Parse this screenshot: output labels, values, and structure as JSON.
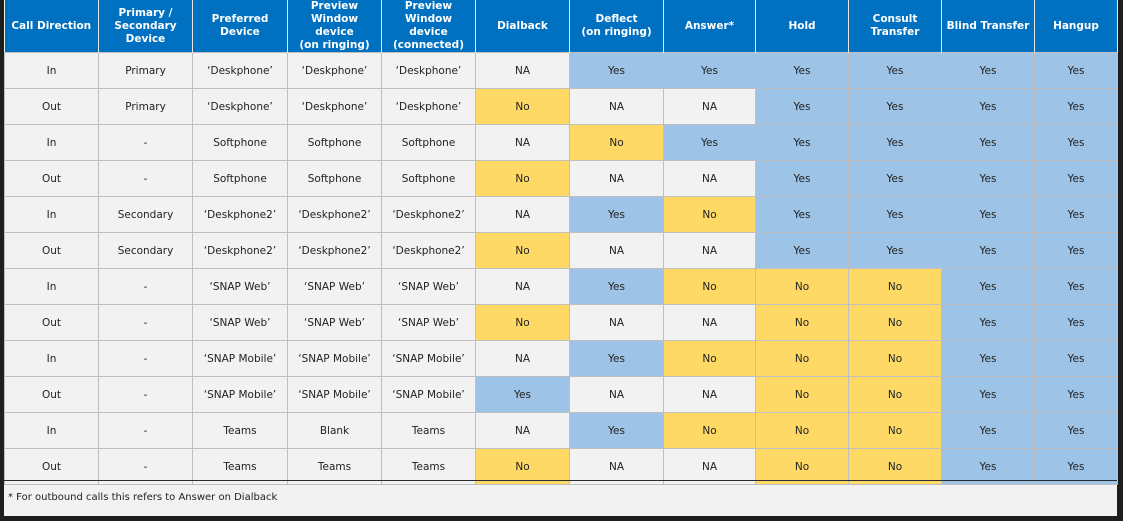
{
  "table": {
    "headers": [
      [
        "Call Direction"
      ],
      [
        "Primary /",
        "Secondary",
        "Device"
      ],
      [
        "Preferred Device"
      ],
      [
        "Preview Window",
        "device",
        "(on ringing)"
      ],
      [
        "Preview Window",
        "device",
        "(connected)"
      ],
      [
        "Dialback"
      ],
      [
        "Deflect",
        "(on ringing)"
      ],
      [
        "Answer*"
      ],
      [
        "Hold"
      ],
      [
        "Consult Transfer"
      ],
      [
        "Blind Transfer"
      ],
      [
        "Hangup"
      ]
    ],
    "rows": [
      [
        "In",
        "Primary",
        "‘Deskphone’",
        "‘Deskphone’",
        "‘Deskphone’",
        "NA",
        "Yes",
        "Yes",
        "Yes",
        "Yes",
        "Yes",
        "Yes"
      ],
      [
        "Out",
        "Primary",
        "‘Deskphone’",
        "‘Deskphone’",
        "‘Deskphone’",
        "No",
        "NA",
        "NA",
        "Yes",
        "Yes",
        "Yes",
        "Yes"
      ],
      [
        "In",
        "-",
        "Softphone",
        "Softphone",
        "Softphone",
        "NA",
        "No",
        "Yes",
        "Yes",
        "Yes",
        "Yes",
        "Yes"
      ],
      [
        "Out",
        "-",
        "Softphone",
        "Softphone",
        "Softphone",
        "No",
        "NA",
        "NA",
        "Yes",
        "Yes",
        "Yes",
        "Yes"
      ],
      [
        "In",
        "Secondary",
        "‘Deskphone2’",
        "‘Deskphone2’",
        "‘Deskphone2’",
        "NA",
        "Yes",
        "No",
        "Yes",
        "Yes",
        "Yes",
        "Yes"
      ],
      [
        "Out",
        "Secondary",
        "‘Deskphone2’",
        "‘Deskphone2’",
        "‘Deskphone2’",
        "No",
        "NA",
        "NA",
        "Yes",
        "Yes",
        "Yes",
        "Yes"
      ],
      [
        "In",
        "-",
        "‘SNAP Web’",
        "‘SNAP Web’",
        "‘SNAP Web’",
        "NA",
        "Yes",
        "No",
        "No",
        "No",
        "Yes",
        "Yes"
      ],
      [
        "Out",
        "-",
        "‘SNAP Web’",
        "‘SNAP Web’",
        "‘SNAP Web’",
        "No",
        "NA",
        "NA",
        "No",
        "No",
        "Yes",
        "Yes"
      ],
      [
        "In",
        "-",
        "‘SNAP Mobile’",
        "‘SNAP Mobile’",
        "‘SNAP Mobile’",
        "NA",
        "Yes",
        "No",
        "No",
        "No",
        "Yes",
        "Yes"
      ],
      [
        "Out",
        "-",
        "‘SNAP Mobile’",
        "‘SNAP Mobile’",
        "‘SNAP Mobile’",
        "Yes",
        "NA",
        "NA",
        "No",
        "No",
        "Yes",
        "Yes"
      ],
      [
        "In",
        "-",
        "Teams",
        "Blank",
        "Teams",
        "NA",
        "Yes",
        "No",
        "No",
        "No",
        "Yes",
        "Yes"
      ],
      [
        "Out",
        "-",
        "Teams",
        "Teams",
        "Teams",
        "No",
        "NA",
        "NA",
        "No",
        "No",
        "Yes",
        "Yes"
      ]
    ]
  },
  "footnote": "* For outbound calls this refers to Answer on Dialback",
  "colors": {
    "header_bg": "#0070c0",
    "yes_cell": "#9dc3e6",
    "no_cell": "#ffd966",
    "neutral_cell": "#f2f2f2"
  }
}
